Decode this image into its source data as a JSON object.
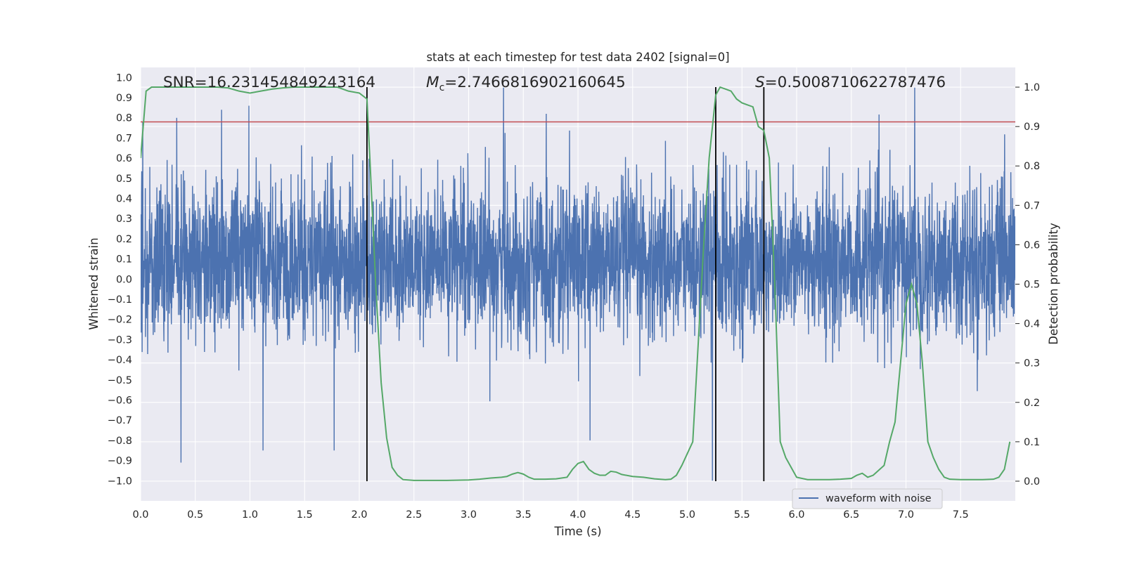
{
  "chart_data": {
    "type": "line",
    "title": "stats at each timestep for test data 2402 [signal=0]",
    "xlabel": "Time (s)",
    "ylabel_left": "Whitened strain",
    "ylabel_right": "Detection probability",
    "xlim": [
      0.0,
      8.0
    ],
    "ylim_left": [
      -1.1,
      1.05
    ],
    "ylim_right": [
      -0.05,
      1.05
    ],
    "x_ticks": [
      "0.0",
      "0.5",
      "1.0",
      "1.5",
      "2.0",
      "2.5",
      "3.0",
      "3.5",
      "4.0",
      "4.5",
      "5.0",
      "5.5",
      "6.0",
      "6.5",
      "7.0",
      "7.5"
    ],
    "left_ticks": [
      "1.0",
      "0.9",
      "0.8",
      "0.7",
      "0.6",
      "0.5",
      "0.4",
      "0.3",
      "0.2",
      "0.1",
      "0.0",
      "−0.1",
      "−0.2",
      "−0.3",
      "−0.4",
      "−0.5",
      "−0.6",
      "−0.7",
      "−0.8",
      "−0.9",
      "−1.0"
    ],
    "right_ticks": [
      "1.0",
      "0.9",
      "0.8",
      "0.7",
      "0.6",
      "0.5",
      "0.4",
      "0.3",
      "0.2",
      "0.1",
      "0.0"
    ],
    "grid": true,
    "legend_position": "bottom-right",
    "annotations": {
      "snr_text": "SNR=16.231454849243164",
      "mc_symbol": "M",
      "mc_subscript": "c",
      "mc_value": "=2.7466816902160645",
      "s_symbol": "S",
      "s_value": "=0.5008710622787476"
    },
    "threshold_left": 0.78,
    "vertical_lines_x": [
      2.07,
      5.26,
      5.7
    ],
    "series": [
      {
        "name": "waveform with noise",
        "kind": "noise-strain",
        "color": "#4c72b0",
        "band_core": [
          -0.2,
          0.38
        ],
        "typical_extent": [
          -0.45,
          0.65
        ],
        "peaks": [
          {
            "x": 0.02,
            "y": 0.78
          },
          {
            "x": 0.33,
            "y": 0.8
          },
          {
            "x": 0.37,
            "y": -0.91
          },
          {
            "x": 0.74,
            "y": 0.84
          },
          {
            "x": 0.99,
            "y": 0.86
          },
          {
            "x": 1.12,
            "y": -0.85
          },
          {
            "x": 1.77,
            "y": -0.85
          },
          {
            "x": 3.32,
            "y": 0.95
          },
          {
            "x": 3.71,
            "y": 0.82
          },
          {
            "x": 4.11,
            "y": -0.8
          },
          {
            "x": 5.23,
            "y": -1.0
          },
          {
            "x": 7.08,
            "y": 0.95
          }
        ]
      },
      {
        "name": "",
        "kind": "detection-probability",
        "axis": "right",
        "color": "#55a868",
        "x": [
          0.0,
          0.05,
          0.1,
          0.15,
          0.2,
          0.3,
          0.4,
          0.5,
          0.6,
          0.7,
          0.8,
          0.9,
          1.0,
          1.1,
          1.2,
          1.3,
          1.4,
          1.5,
          1.6,
          1.7,
          1.8,
          1.9,
          2.0,
          2.07,
          2.1,
          2.15,
          2.2,
          2.25,
          2.3,
          2.35,
          2.4,
          2.5,
          2.6,
          2.8,
          3.0,
          3.1,
          3.2,
          3.3,
          3.35,
          3.4,
          3.45,
          3.5,
          3.55,
          3.6,
          3.7,
          3.8,
          3.9,
          3.95,
          4.0,
          4.05,
          4.1,
          4.15,
          4.2,
          4.25,
          4.3,
          4.35,
          4.4,
          4.5,
          4.6,
          4.7,
          4.8,
          4.85,
          4.9,
          4.95,
          5.0,
          5.05,
          5.1,
          5.15,
          5.2,
          5.26,
          5.3,
          5.35,
          5.4,
          5.45,
          5.5,
          5.55,
          5.6,
          5.65,
          5.7,
          5.75,
          5.8,
          5.85,
          5.9,
          6.0,
          6.1,
          6.2,
          6.3,
          6.4,
          6.5,
          6.55,
          6.6,
          6.65,
          6.7,
          6.8,
          6.85,
          6.9,
          6.95,
          7.0,
          7.05,
          7.1,
          7.15,
          7.2,
          7.25,
          7.3,
          7.35,
          7.4,
          7.5,
          7.6,
          7.7,
          7.8,
          7.85,
          7.9,
          7.95
        ],
        "y": [
          0.82,
          0.99,
          1.0,
          1.0,
          1.0,
          1.0,
          1.0,
          1.0,
          1.0,
          1.0,
          0.998,
          0.99,
          0.985,
          0.99,
          0.995,
          0.998,
          1.0,
          1.0,
          1.0,
          1.0,
          1.0,
          0.99,
          0.985,
          0.97,
          0.8,
          0.5,
          0.25,
          0.11,
          0.035,
          0.015,
          0.004,
          0.002,
          0.002,
          0.002,
          0.003,
          0.005,
          0.008,
          0.01,
          0.012,
          0.018,
          0.022,
          0.018,
          0.01,
          0.005,
          0.005,
          0.006,
          0.01,
          0.03,
          0.045,
          0.05,
          0.03,
          0.02,
          0.015,
          0.015,
          0.025,
          0.023,
          0.017,
          0.012,
          0.01,
          0.006,
          0.004,
          0.005,
          0.015,
          0.04,
          0.07,
          0.1,
          0.35,
          0.6,
          0.82,
          0.98,
          1.0,
          0.995,
          0.99,
          0.97,
          0.96,
          0.955,
          0.95,
          0.9,
          0.89,
          0.82,
          0.5,
          0.1,
          0.06,
          0.01,
          0.004,
          0.004,
          0.004,
          0.005,
          0.007,
          0.015,
          0.02,
          0.01,
          0.015,
          0.04,
          0.1,
          0.15,
          0.3,
          0.45,
          0.5,
          0.45,
          0.3,
          0.1,
          0.06,
          0.03,
          0.01,
          0.005,
          0.004,
          0.004,
          0.004,
          0.005,
          0.01,
          0.03,
          0.1
        ]
      },
      {
        "name": "",
        "kind": "threshold",
        "axis": "left",
        "color": "#c44e52"
      }
    ]
  }
}
